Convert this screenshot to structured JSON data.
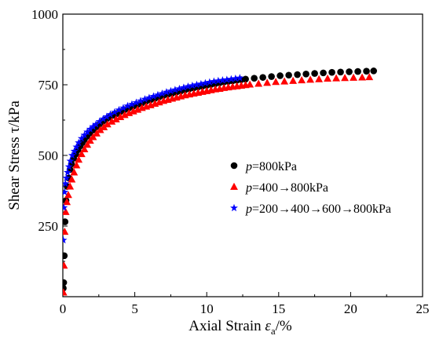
{
  "chart_data": {
    "type": "scatter",
    "xlabel": {
      "pre": "Axial Strain ",
      "sym": "ε",
      "sub": "a",
      "post": "/%"
    },
    "ylabel": "Shear Stress τ/kPa",
    "xlim": [
      0,
      25
    ],
    "ylim": [
      0,
      1000
    ],
    "xticks": [
      0,
      5,
      10,
      15,
      20,
      25
    ],
    "yticks": [
      250,
      500,
      750,
      1000
    ],
    "grid": false,
    "legend_position": "center-right",
    "series": [
      {
        "name": {
          "sym": "p",
          "rest": "=800kPa"
        },
        "color": "#000000",
        "marker": "circle",
        "x": [
          0.03,
          0.06,
          0.1,
          0.15,
          0.22,
          0.3,
          0.4,
          0.5,
          0.6,
          0.75,
          0.9,
          1.05,
          1.2,
          1.35,
          1.5,
          1.7,
          1.9,
          2.1,
          2.3,
          2.5,
          2.75,
          3.0,
          3.25,
          3.5,
          3.75,
          4.0,
          4.3,
          4.6,
          4.9,
          5.2,
          5.5,
          5.8,
          6.1,
          6.4,
          6.7,
          7.0,
          7.3,
          7.6,
          7.9,
          8.2,
          8.5,
          8.8,
          9.1,
          9.4,
          9.7,
          10.0,
          10.3,
          10.6,
          10.9,
          11.2,
          11.5,
          11.8,
          12.1,
          12.4,
          12.7,
          13.3,
          13.9,
          14.5,
          15.1,
          15.7,
          16.3,
          16.9,
          17.5,
          18.1,
          18.7,
          19.3,
          19.9,
          20.5,
          21.1,
          21.6
        ],
        "y": [
          30,
          50,
          145,
          265,
          340,
          390,
          420,
          450,
          470,
          490,
          505,
          520,
          533,
          545,
          556,
          568,
          580,
          590,
          600,
          608,
          618,
          627,
          635,
          642,
          648,
          655,
          662,
          668,
          674,
          680,
          686,
          692,
          697,
          702,
          707,
          712,
          716,
          720,
          724,
          728,
          732,
          736,
          739,
          742,
          745,
          748,
          751,
          754,
          757,
          760,
          762,
          764,
          766,
          768,
          770,
          773,
          776,
          779,
          782,
          784,
          786,
          788,
          790,
          792,
          794,
          795,
          796,
          797,
          798,
          799
        ]
      },
      {
        "name": {
          "sym": "p",
          "rest": "=400→800kPa"
        },
        "color": "#ff0000",
        "marker": "triangle",
        "x": [
          0.04,
          0.08,
          0.13,
          0.2,
          0.28,
          0.38,
          0.5,
          0.62,
          0.78,
          0.95,
          1.1,
          1.3,
          1.5,
          1.7,
          1.9,
          2.1,
          2.35,
          2.6,
          2.85,
          3.1,
          3.4,
          3.7,
          4.0,
          4.3,
          4.6,
          4.9,
          5.2,
          5.5,
          5.8,
          6.1,
          6.4,
          6.7,
          7.0,
          7.3,
          7.6,
          7.9,
          8.2,
          8.5,
          8.8,
          9.1,
          9.4,
          9.7,
          10.0,
          10.3,
          10.6,
          10.9,
          11.2,
          11.5,
          11.8,
          12.1,
          12.4,
          12.7,
          13.0,
          13.6,
          14.2,
          14.8,
          15.4,
          16.0,
          16.6,
          17.2,
          17.8,
          18.4,
          19.0,
          19.6,
          20.2,
          20.8,
          21.3
        ],
        "y": [
          15,
          110,
          230,
          300,
          335,
          360,
          390,
          415,
          440,
          465,
          485,
          505,
          522,
          538,
          552,
          565,
          578,
          590,
          600,
          610,
          620,
          628,
          636,
          643,
          650,
          656,
          662,
          668,
          673,
          678,
          683,
          688,
          693,
          697,
          701,
          705,
          709,
          713,
          716,
          719,
          722,
          725,
          728,
          731,
          734,
          736,
          739,
          741,
          743,
          745,
          747,
          749,
          751,
          754,
          757,
          760,
          762,
          764,
          766,
          768,
          770,
          772,
          773,
          774,
          775,
          776,
          777
        ]
      },
      {
        "name": {
          "sym": "p",
          "rest": "=200→400→600→800kPa"
        },
        "color": "#0000ff",
        "marker": "star",
        "x": [
          0.03,
          0.07,
          0.12,
          0.18,
          0.25,
          0.33,
          0.42,
          0.52,
          0.65,
          0.8,
          0.95,
          1.1,
          1.3,
          1.5,
          1.7,
          1.9,
          2.1,
          2.3,
          2.55,
          2.8,
          3.05,
          3.3,
          3.6,
          3.9,
          4.2,
          4.5,
          4.8,
          5.1,
          5.4,
          5.7,
          6.0,
          6.3,
          6.6,
          6.9,
          7.2,
          7.5,
          7.8,
          8.1,
          8.4,
          8.7,
          9.0,
          9.3,
          9.6,
          9.9,
          10.2,
          10.5,
          10.8,
          11.1,
          11.4,
          11.7,
          12.0,
          12.3
        ],
        "y": [
          200,
          315,
          370,
          400,
          420,
          440,
          460,
          480,
          500,
          515,
          530,
          545,
          560,
          572,
          583,
          593,
          602,
          610,
          620,
          629,
          637,
          645,
          653,
          661,
          668,
          675,
          681,
          687,
          693,
          699,
          704,
          709,
          714,
          719,
          724,
          728,
          732,
          736,
          740,
          744,
          747,
          750,
          753,
          756,
          759,
          762,
          764,
          766,
          768,
          770,
          772,
          774
        ]
      }
    ]
  }
}
